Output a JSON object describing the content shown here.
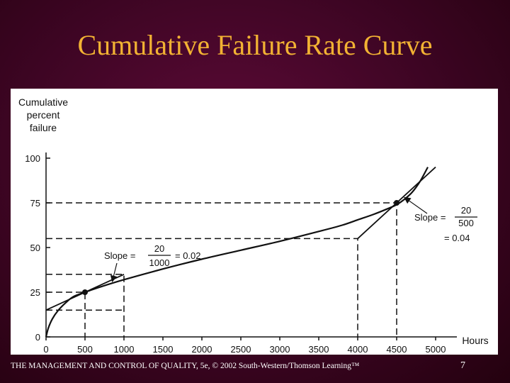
{
  "slide": {
    "title": "Cumulative Failure Rate Curve",
    "footer": "THE MANAGEMENT AND CONTROL OF QUALITY, 5e, © 2002 South-Western/Thomson Learning™",
    "page_number": "7",
    "colors": {
      "background": "#4a0a2c",
      "title": "#f2b233",
      "footer_text": "#ffffff"
    }
  },
  "chart_data": {
    "type": "line",
    "ylabel_lines": [
      "Cumulative",
      "percent",
      "failure"
    ],
    "xlabel": "Hours",
    "x_ticks": [
      0,
      500,
      1000,
      1500,
      2000,
      2500,
      3000,
      3500,
      4000,
      4500,
      5000
    ],
    "x_tick_labels": [
      "0",
      "500",
      "1000",
      "1500",
      "2000",
      "2500",
      "3000",
      "3500",
      "4000",
      "4500",
      "5000"
    ],
    "y_ticks": [
      0,
      25,
      50,
      75,
      100
    ],
    "y_tick_labels": [
      "0",
      "25",
      "50",
      "75",
      "100"
    ],
    "xlim": [
      0,
      5000
    ],
    "ylim": [
      0,
      100
    ],
    "grid": false,
    "series": [
      {
        "x": [
          0,
          30,
          80,
          150,
          250,
          350,
          500,
          700,
          1000,
          1500,
          2000,
          2500,
          3000,
          3500,
          3800,
          4000,
          4200,
          4400,
          4500,
          4600,
          4700,
          4800,
          4900
        ],
        "y": [
          0,
          5,
          10,
          14.5,
          19,
          22.5,
          25,
          28,
          32,
          38,
          43.5,
          48.5,
          53.5,
          59,
          62.5,
          65.5,
          68.5,
          72,
          74,
          77,
          81,
          87,
          95
        ]
      }
    ],
    "points": [
      {
        "x": 500,
        "y": 25
      },
      {
        "x": 4500,
        "y": 75
      }
    ],
    "tangent_lines": [
      {
        "x": [
          0,
          1000
        ],
        "y": [
          15,
          35
        ]
      },
      {
        "x": [
          4000,
          5000
        ],
        "y": [
          55,
          95
        ]
      }
    ],
    "guide_lines": [
      {
        "x": [
          0,
          500,
          500
        ],
        "y": [
          25,
          25,
          0
        ]
      },
      {
        "x": [
          0,
          1000,
          1000
        ],
        "y": [
          35,
          35,
          0
        ]
      },
      {
        "x": [
          0,
          1000
        ],
        "y": [
          15,
          15
        ]
      },
      {
        "x": [
          0,
          4500,
          4500
        ],
        "y": [
          75,
          75,
          0
        ]
      },
      {
        "x": [
          0,
          4000,
          4000
        ],
        "y": [
          55,
          55,
          0
        ]
      }
    ],
    "annotations": [
      {
        "label": "Slope =",
        "numerator": "20",
        "denominator": "1000",
        "result": "= 0.02",
        "arrow_to": {
          "x": 850,
          "y": 31
        }
      },
      {
        "label": "Slope =",
        "numerator": "20",
        "denominator": "500",
        "result": "= 0.04",
        "arrow_to": {
          "x": 4600,
          "y": 78
        }
      }
    ]
  }
}
